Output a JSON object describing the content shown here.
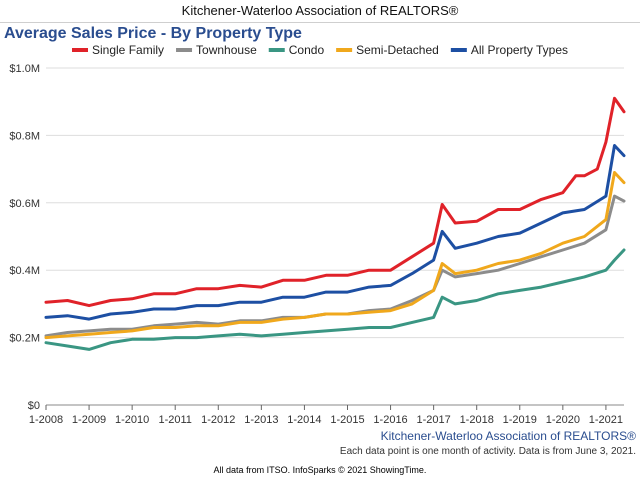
{
  "header": {
    "title": "Kitchener-Waterloo Association of REALTORS®"
  },
  "chart_data": {
    "type": "line",
    "title": "Average Sales Price - By Property Type",
    "xlabel": "",
    "ylabel": "",
    "x_tick_labels": [
      "1-2008",
      "1-2009",
      "1-2010",
      "1-2011",
      "1-2012",
      "1-2013",
      "1-2014",
      "1-2015",
      "1-2016",
      "1-2017",
      "1-2018",
      "1-2019",
      "1-2020",
      "1-2021"
    ],
    "y_tick_labels": [
      "$0",
      "$0.2M",
      "$0.4M",
      "$0.6M",
      "$0.8M",
      "$1.0M"
    ],
    "ylim": [
      0,
      1000000
    ],
    "xlim": [
      "2008-01",
      "2021-05"
    ],
    "grid": "horizontal",
    "legend_position": "top",
    "series": [
      {
        "name": "Single Family",
        "color": "#e02229",
        "values": [
          [
            2008.0,
            305000
          ],
          [
            2008.5,
            310000
          ],
          [
            2009.0,
            295000
          ],
          [
            2009.5,
            310000
          ],
          [
            2010.0,
            315000
          ],
          [
            2010.5,
            330000
          ],
          [
            2011.0,
            330000
          ],
          [
            2011.5,
            345000
          ],
          [
            2012.0,
            345000
          ],
          [
            2012.5,
            355000
          ],
          [
            2013.0,
            350000
          ],
          [
            2013.5,
            370000
          ],
          [
            2014.0,
            370000
          ],
          [
            2014.5,
            385000
          ],
          [
            2015.0,
            385000
          ],
          [
            2015.5,
            400000
          ],
          [
            2016.0,
            400000
          ],
          [
            2016.5,
            440000
          ],
          [
            2017.0,
            480000
          ],
          [
            2017.2,
            595000
          ],
          [
            2017.5,
            540000
          ],
          [
            2018.0,
            545000
          ],
          [
            2018.5,
            580000
          ],
          [
            2019.0,
            580000
          ],
          [
            2019.5,
            610000
          ],
          [
            2020.0,
            630000
          ],
          [
            2020.3,
            680000
          ],
          [
            2020.5,
            680000
          ],
          [
            2020.8,
            700000
          ],
          [
            2021.0,
            780000
          ],
          [
            2021.2,
            910000
          ],
          [
            2021.42,
            870000
          ]
        ]
      },
      {
        "name": "Townhouse",
        "color": "#8c8c8c",
        "values": [
          [
            2008.0,
            205000
          ],
          [
            2008.5,
            215000
          ],
          [
            2009.0,
            220000
          ],
          [
            2009.5,
            225000
          ],
          [
            2010.0,
            225000
          ],
          [
            2010.5,
            235000
          ],
          [
            2011.0,
            240000
          ],
          [
            2011.5,
            245000
          ],
          [
            2012.0,
            240000
          ],
          [
            2012.5,
            250000
          ],
          [
            2013.0,
            250000
          ],
          [
            2013.5,
            260000
          ],
          [
            2014.0,
            260000
          ],
          [
            2014.5,
            270000
          ],
          [
            2015.0,
            270000
          ],
          [
            2015.5,
            280000
          ],
          [
            2016.0,
            285000
          ],
          [
            2016.5,
            310000
          ],
          [
            2017.0,
            340000
          ],
          [
            2017.2,
            400000
          ],
          [
            2017.5,
            380000
          ],
          [
            2018.0,
            390000
          ],
          [
            2018.5,
            400000
          ],
          [
            2019.0,
            420000
          ],
          [
            2019.5,
            440000
          ],
          [
            2020.0,
            460000
          ],
          [
            2020.5,
            480000
          ],
          [
            2021.0,
            520000
          ],
          [
            2021.2,
            620000
          ],
          [
            2021.42,
            605000
          ]
        ]
      },
      {
        "name": "Condo",
        "color": "#3a9683",
        "values": [
          [
            2008.0,
            185000
          ],
          [
            2008.5,
            175000
          ],
          [
            2009.0,
            165000
          ],
          [
            2009.5,
            185000
          ],
          [
            2010.0,
            195000
          ],
          [
            2010.5,
            195000
          ],
          [
            2011.0,
            200000
          ],
          [
            2011.5,
            200000
          ],
          [
            2012.0,
            205000
          ],
          [
            2012.5,
            210000
          ],
          [
            2013.0,
            205000
          ],
          [
            2013.5,
            210000
          ],
          [
            2014.0,
            215000
          ],
          [
            2014.5,
            220000
          ],
          [
            2015.0,
            225000
          ],
          [
            2015.5,
            230000
          ],
          [
            2016.0,
            230000
          ],
          [
            2016.5,
            245000
          ],
          [
            2017.0,
            260000
          ],
          [
            2017.2,
            320000
          ],
          [
            2017.5,
            300000
          ],
          [
            2018.0,
            310000
          ],
          [
            2018.5,
            330000
          ],
          [
            2019.0,
            340000
          ],
          [
            2019.5,
            350000
          ],
          [
            2020.0,
            365000
          ],
          [
            2020.5,
            380000
          ],
          [
            2021.0,
            400000
          ],
          [
            2021.2,
            430000
          ],
          [
            2021.42,
            460000
          ]
        ]
      },
      {
        "name": "Semi-Detached",
        "color": "#f0a81c",
        "values": [
          [
            2008.0,
            200000
          ],
          [
            2008.5,
            205000
          ],
          [
            2009.0,
            210000
          ],
          [
            2009.5,
            215000
          ],
          [
            2010.0,
            220000
          ],
          [
            2010.5,
            230000
          ],
          [
            2011.0,
            230000
          ],
          [
            2011.5,
            235000
          ],
          [
            2012.0,
            235000
          ],
          [
            2012.5,
            245000
          ],
          [
            2013.0,
            245000
          ],
          [
            2013.5,
            255000
          ],
          [
            2014.0,
            260000
          ],
          [
            2014.5,
            270000
          ],
          [
            2015.0,
            270000
          ],
          [
            2015.5,
            275000
          ],
          [
            2016.0,
            280000
          ],
          [
            2016.5,
            300000
          ],
          [
            2017.0,
            340000
          ],
          [
            2017.2,
            420000
          ],
          [
            2017.5,
            390000
          ],
          [
            2018.0,
            400000
          ],
          [
            2018.5,
            420000
          ],
          [
            2019.0,
            430000
          ],
          [
            2019.5,
            450000
          ],
          [
            2020.0,
            480000
          ],
          [
            2020.5,
            500000
          ],
          [
            2021.0,
            550000
          ],
          [
            2021.2,
            690000
          ],
          [
            2021.42,
            660000
          ]
        ]
      },
      {
        "name": "All Property Types",
        "color": "#1d4fa3",
        "values": [
          [
            2008.0,
            260000
          ],
          [
            2008.5,
            265000
          ],
          [
            2009.0,
            255000
          ],
          [
            2009.5,
            270000
          ],
          [
            2010.0,
            275000
          ],
          [
            2010.5,
            285000
          ],
          [
            2011.0,
            285000
          ],
          [
            2011.5,
            295000
          ],
          [
            2012.0,
            295000
          ],
          [
            2012.5,
            305000
          ],
          [
            2013.0,
            305000
          ],
          [
            2013.5,
            320000
          ],
          [
            2014.0,
            320000
          ],
          [
            2014.5,
            335000
          ],
          [
            2015.0,
            335000
          ],
          [
            2015.5,
            350000
          ],
          [
            2016.0,
            355000
          ],
          [
            2016.5,
            390000
          ],
          [
            2017.0,
            430000
          ],
          [
            2017.2,
            515000
          ],
          [
            2017.5,
            465000
          ],
          [
            2018.0,
            480000
          ],
          [
            2018.5,
            500000
          ],
          [
            2019.0,
            510000
          ],
          [
            2019.5,
            540000
          ],
          [
            2020.0,
            570000
          ],
          [
            2020.5,
            580000
          ],
          [
            2021.0,
            620000
          ],
          [
            2021.2,
            770000
          ],
          [
            2021.42,
            740000
          ]
        ]
      }
    ]
  },
  "source_label": "Kitchener-Waterloo Association of REALTORS®",
  "note": "Each data point is one month of activity. Data is from June 3, 2021.",
  "footer": "All data from ITSO. InfoSparks © 2021 ShowingTime."
}
